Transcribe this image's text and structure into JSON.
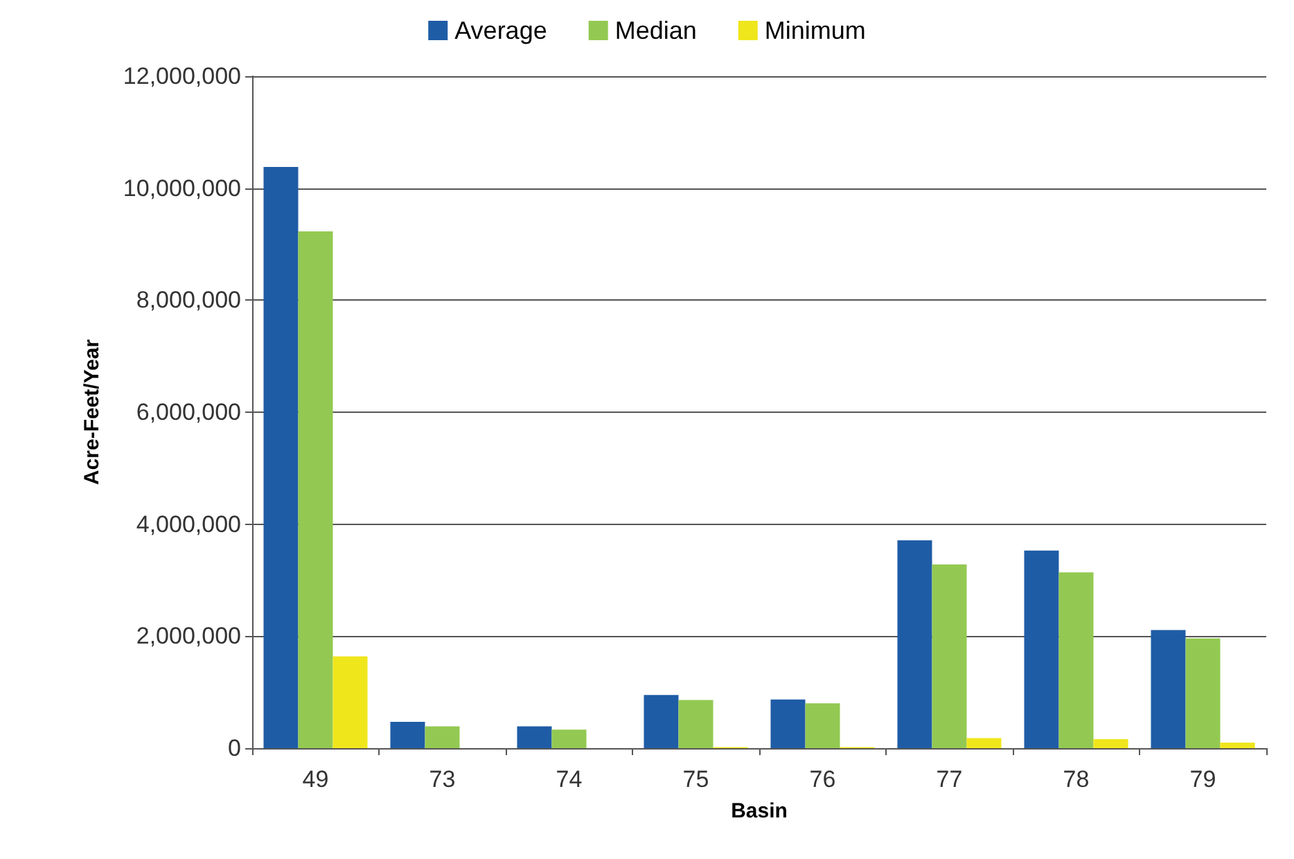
{
  "chart_data": {
    "type": "bar",
    "xlabel": "Basin",
    "ylabel": "Acre-Feet/Year",
    "categories": [
      "49",
      "73",
      "74",
      "75",
      "76",
      "77",
      "78",
      "79"
    ],
    "series": [
      {
        "name": "Average",
        "color": "#1f5ca6",
        "values": [
          10380000,
          470000,
          390000,
          950000,
          870000,
          3710000,
          3530000,
          2110000
        ]
      },
      {
        "name": "Median",
        "color": "#93c952",
        "values": [
          9230000,
          390000,
          330000,
          860000,
          800000,
          3280000,
          3140000,
          1960000
        ]
      },
      {
        "name": "Minimum",
        "color": "#f0e61c",
        "values": [
          1640000,
          0,
          0,
          20000,
          20000,
          180000,
          160000,
          100000
        ]
      }
    ],
    "ylim": [
      0,
      12000000
    ],
    "yticks": [
      0,
      {
        "value": 2000000,
        "label": "2,000,000"
      },
      {
        "value": 4000000,
        "label": "4,000,000"
      },
      {
        "value": 6000000,
        "label": "6,000,000"
      },
      {
        "value": 8000000,
        "label": "8,000,000"
      },
      {
        "value": 10000000,
        "label": "10,000,000"
      },
      {
        "value": 12000000,
        "label": "12,000,000"
      }
    ],
    "grid": "y",
    "legend": "top"
  }
}
